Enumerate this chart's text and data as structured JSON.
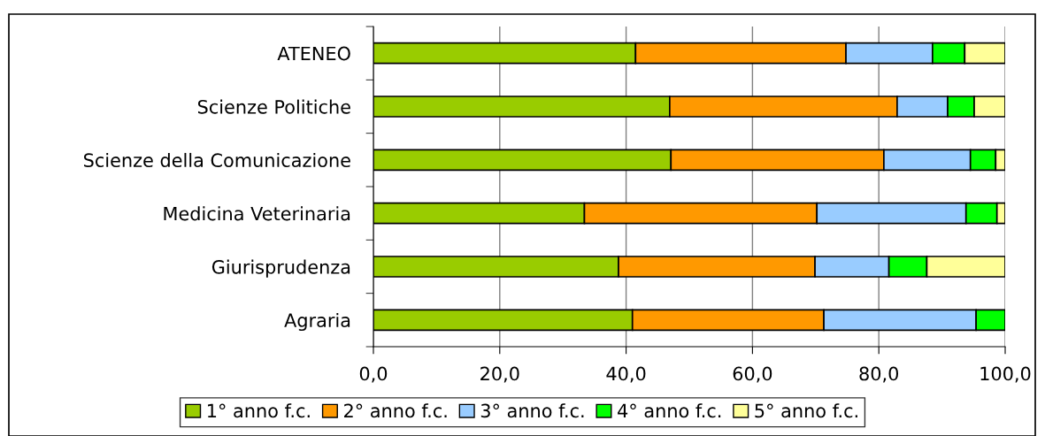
{
  "chart_data": {
    "type": "bar",
    "orientation": "horizontal",
    "stacked": true,
    "categories": [
      "ATENEO",
      "Scienze Politiche",
      "Scienze della Comunicazione",
      "Medicina Veterinaria",
      "Giurisprudenza",
      "Agraria"
    ],
    "series": [
      {
        "name": "1° anno f.c.",
        "color": "#99cc00",
        "values": [
          41.5,
          46.9,
          47.1,
          33.4,
          38.8,
          41.0
        ]
      },
      {
        "name": "2° anno f.c.",
        "color": "#ff9900",
        "values": [
          33.3,
          36.0,
          33.7,
          36.8,
          31.1,
          30.3
        ]
      },
      {
        "name": "3° anno f.c.",
        "color": "#99ccff",
        "values": [
          13.7,
          8.0,
          13.7,
          23.6,
          11.7,
          24.1
        ]
      },
      {
        "name": "4° anno f.c.",
        "color": "#00ff00",
        "values": [
          5.1,
          4.2,
          4.0,
          4.9,
          6.0,
          4.6
        ]
      },
      {
        "name": "5° anno f.c.",
        "color": "#ffff99",
        "values": [
          6.4,
          4.9,
          1.5,
          1.3,
          12.4,
          null
        ]
      }
    ],
    "xlim": [
      0,
      100
    ],
    "xticks": [
      {
        "value": 0,
        "label": "0,0"
      },
      {
        "value": 20,
        "label": "20,0"
      },
      {
        "value": 40,
        "label": "40,0"
      },
      {
        "value": 60,
        "label": "60,0"
      },
      {
        "value": 80,
        "label": "80,0"
      },
      {
        "value": 100,
        "label": "100,0"
      }
    ],
    "grid": "x",
    "legend": "bottom"
  }
}
